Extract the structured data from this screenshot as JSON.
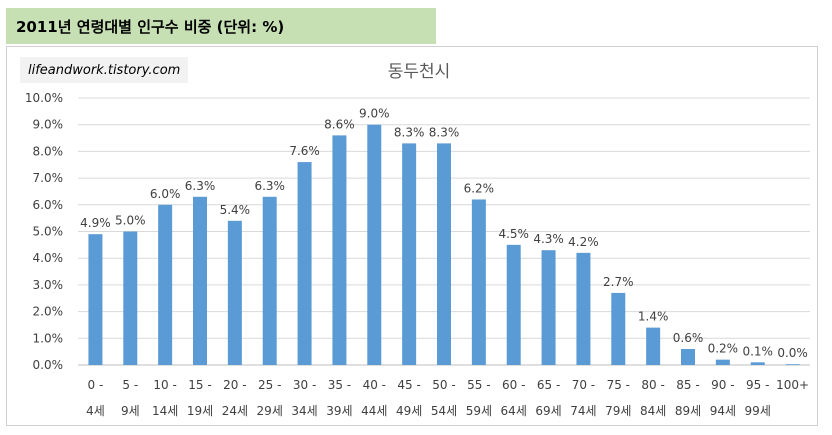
{
  "header": {
    "title": "2011년 연령대별 인구수 비중 (단위: %)"
  },
  "watermark": {
    "text": "lifeandwork.tistory.com"
  },
  "colors": {
    "bar": "#5b9bd5",
    "header_bg": "#c6e0b4",
    "grid": "#d9d9d9"
  },
  "chart_data": {
    "type": "bar",
    "title": "동두천시",
    "xlabel": "",
    "ylabel": "",
    "ylim": [
      0,
      10
    ],
    "y_ticks": [
      "0.0%",
      "1.0%",
      "2.0%",
      "3.0%",
      "4.0%",
      "5.0%",
      "6.0%",
      "7.0%",
      "8.0%",
      "9.0%",
      "10.0%"
    ],
    "grid": true,
    "legend": "none",
    "categories": [
      [
        "0 -",
        "4세"
      ],
      [
        "5 -",
        "9세"
      ],
      [
        "10 -",
        "14세"
      ],
      [
        "15 -",
        "19세"
      ],
      [
        "20 -",
        "24세"
      ],
      [
        "25 -",
        "29세"
      ],
      [
        "30 -",
        "34세"
      ],
      [
        "35 -",
        "39세"
      ],
      [
        "40 -",
        "44세"
      ],
      [
        "45 -",
        "49세"
      ],
      [
        "50 -",
        "54세"
      ],
      [
        "55 -",
        "59세"
      ],
      [
        "60 -",
        "64세"
      ],
      [
        "65 -",
        "69세"
      ],
      [
        "70 -",
        "74세"
      ],
      [
        "75 -",
        "79세"
      ],
      [
        "80 -",
        "84세"
      ],
      [
        "85 -",
        "89세"
      ],
      [
        "90 -",
        "94세"
      ],
      [
        "95 -",
        "99세"
      ],
      [
        "100+",
        ""
      ]
    ],
    "values": [
      4.9,
      5.0,
      6.0,
      6.3,
      5.4,
      6.3,
      7.6,
      8.6,
      9.0,
      8.3,
      8.3,
      6.2,
      4.5,
      4.3,
      4.2,
      2.7,
      1.4,
      0.6,
      0.2,
      0.1,
      0.0
    ],
    "data_labels": [
      "4.9%",
      "5.0%",
      "6.0%",
      "6.3%",
      "5.4%",
      "6.3%",
      "7.6%",
      "8.6%",
      "9.0%",
      "8.3%",
      "8.3%",
      "6.2%",
      "4.5%",
      "4.3%",
      "4.2%",
      "2.7%",
      "1.4%",
      "0.6%",
      "0.2%",
      "0.1%",
      "0.0%"
    ]
  }
}
